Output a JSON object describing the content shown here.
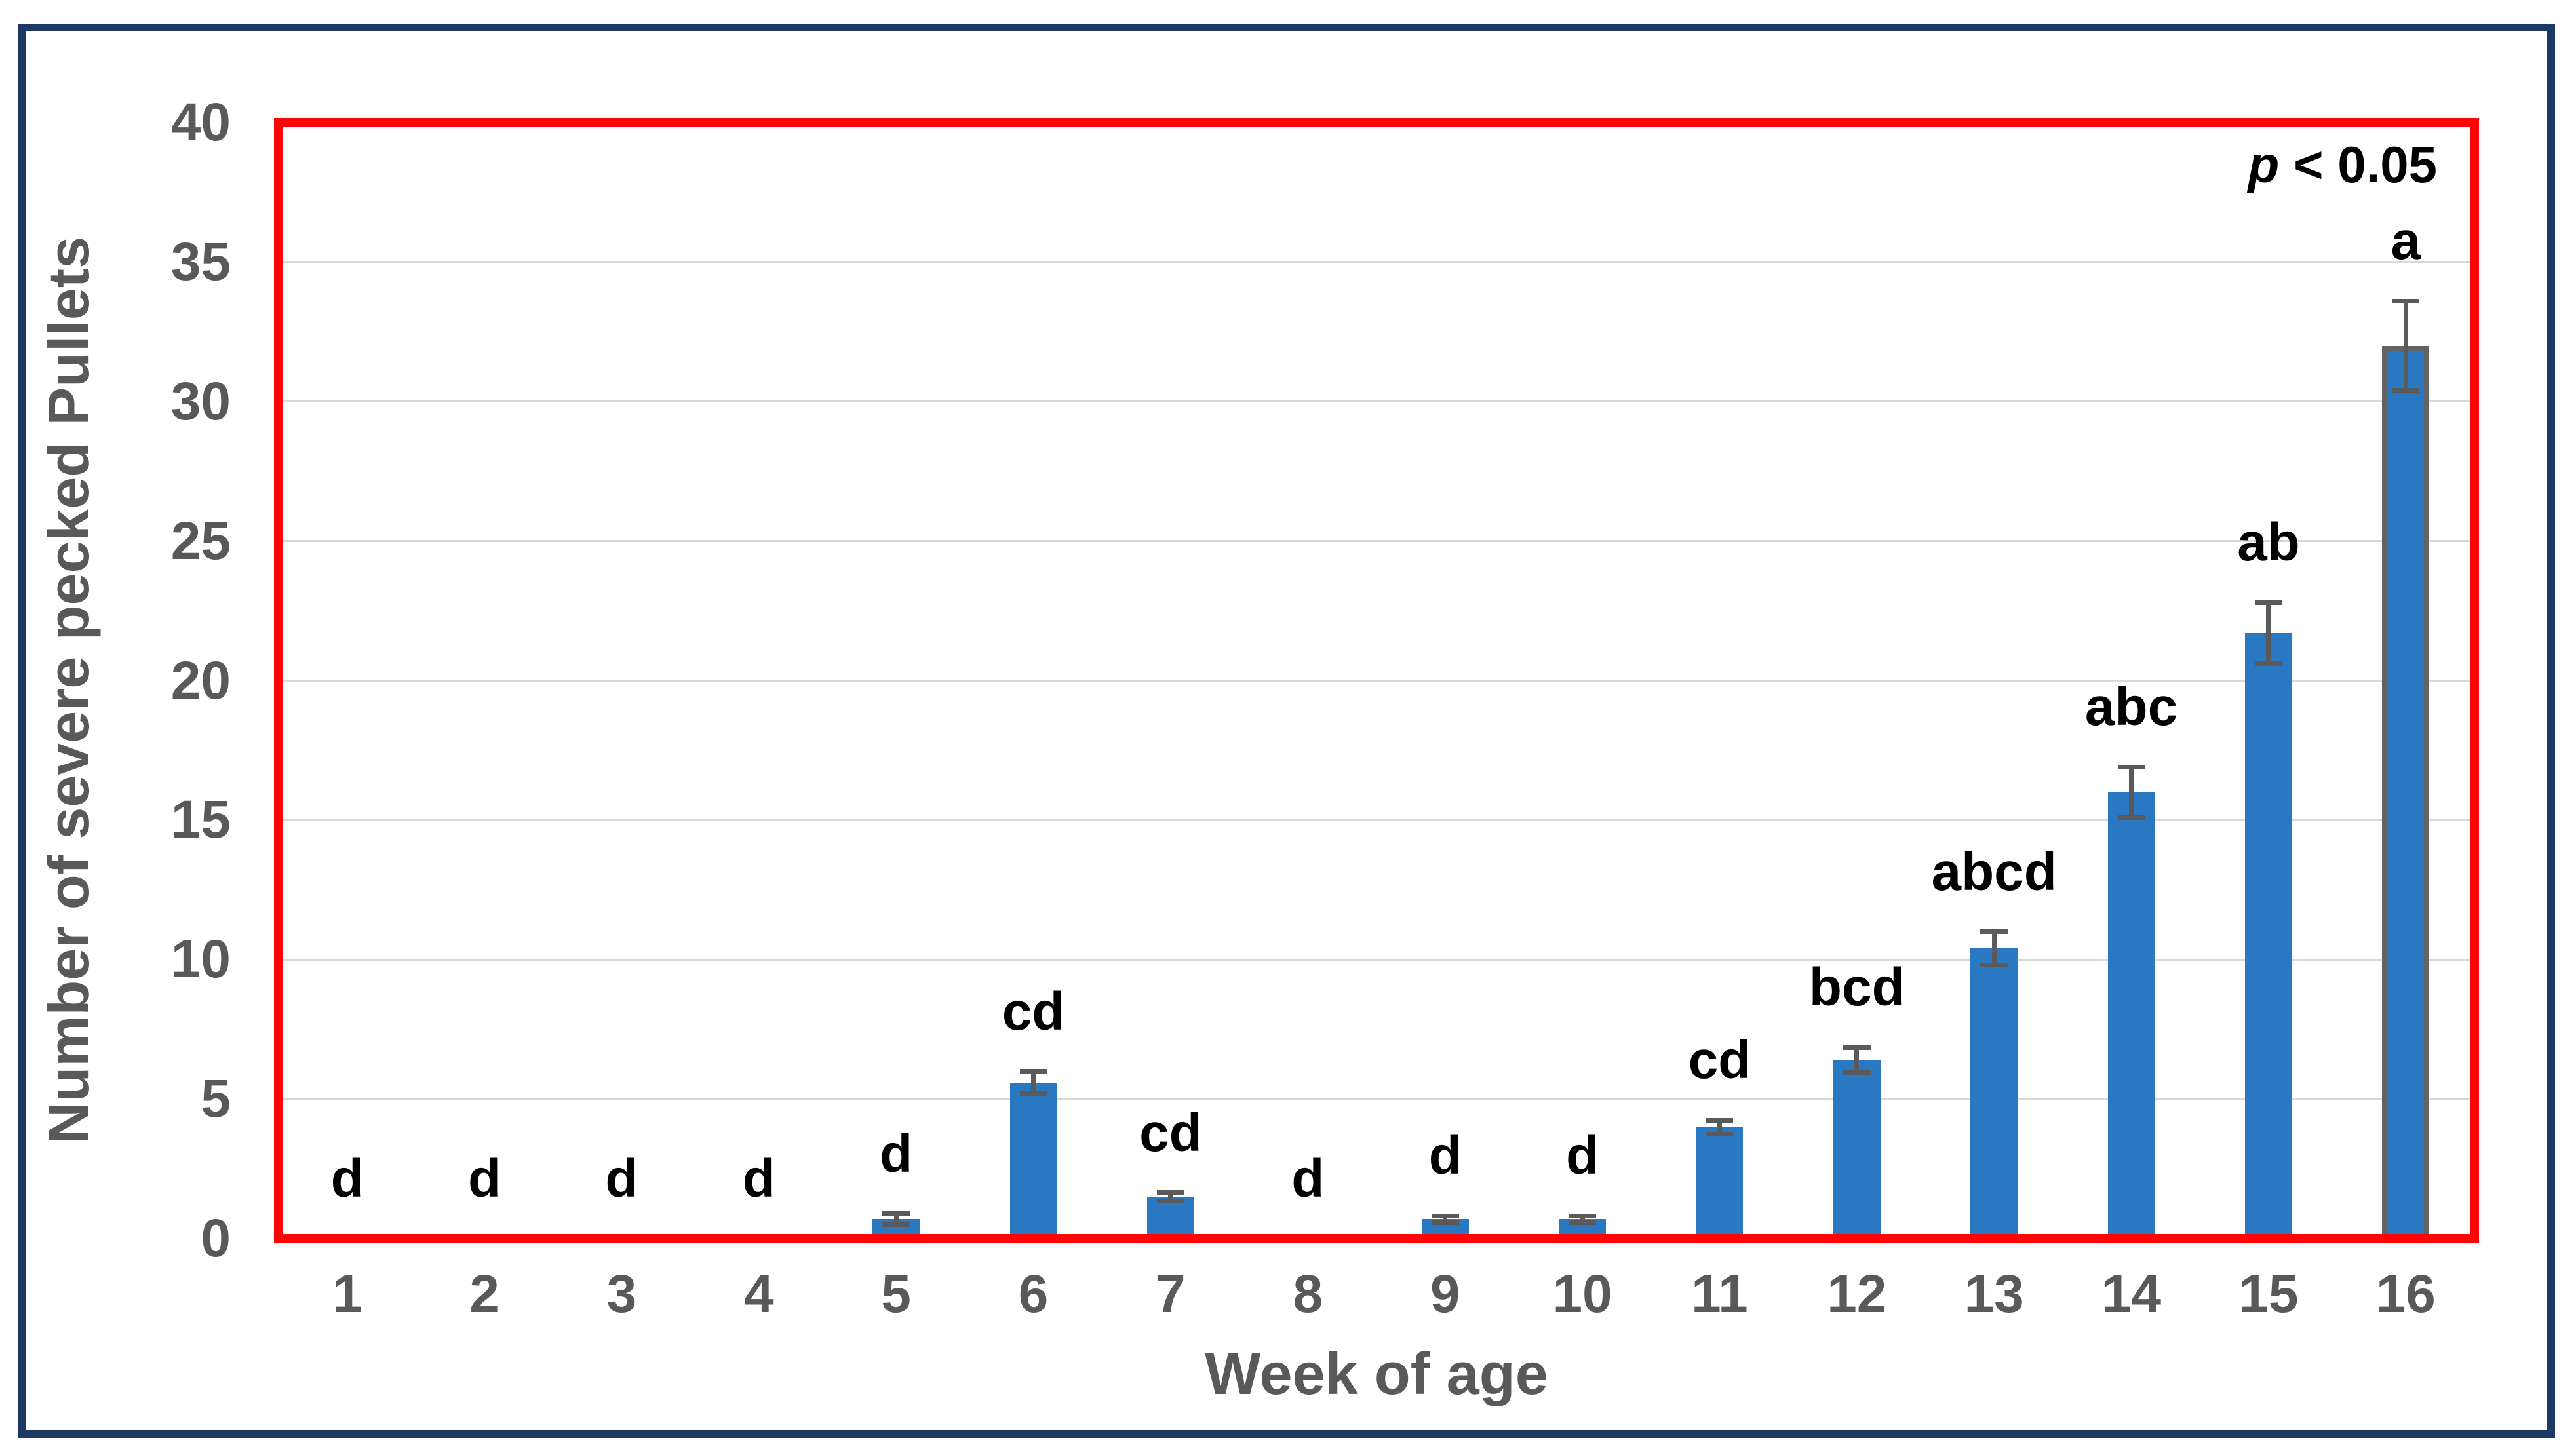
{
  "chart_data": {
    "type": "bar",
    "title": "",
    "xlabel": "Week of age",
    "ylabel": "Number of severe pecked Pullets",
    "annotation": {
      "italic_part": "p",
      "rest_part": " < 0.05"
    },
    "categories": [
      "1",
      "2",
      "3",
      "4",
      "5",
      "6",
      "7",
      "8",
      "9",
      "10",
      "11",
      "12",
      "13",
      "14",
      "15",
      "16"
    ],
    "values": [
      0,
      0,
      0,
      0,
      0.7,
      5.6,
      1.5,
      0,
      0.7,
      0.7,
      4.0,
      6.4,
      10.4,
      16.0,
      21.7,
      32.0
    ],
    "error_bars": [
      0,
      0,
      0,
      0,
      0.2,
      0.4,
      0.15,
      0,
      0.12,
      0.12,
      0.25,
      0.45,
      0.6,
      0.9,
      1.1,
      1.6
    ],
    "sig_letters": [
      "d",
      "d",
      "d",
      "d",
      "d",
      "cd",
      "cd",
      "d",
      "d",
      "d",
      "cd",
      "bcd",
      "abcd",
      "abc",
      "ab",
      "a"
    ],
    "ylim": [
      0,
      40
    ],
    "yticks": [
      0,
      5,
      10,
      15,
      20,
      25,
      30,
      35,
      40
    ],
    "grid": true,
    "legend": "none",
    "highlighted_bar_category": "16",
    "colors": {
      "bar_fill": "#2b78c2",
      "bar16_outline": "#636363",
      "error_bar": "#5a5a5a",
      "plot_border": "#fe0404",
      "outer_frame": "#1c3a63",
      "gridline": "#d9d9d9",
      "tick_text": "#595959",
      "letter_text": "#000000",
      "background": "#ffffff"
    }
  }
}
